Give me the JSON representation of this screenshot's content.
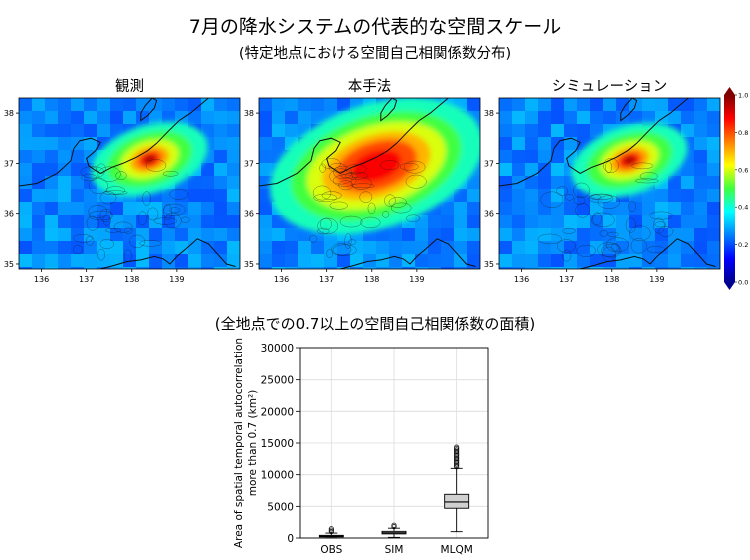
{
  "figure": {
    "title": "7月の降水システムの代表的な空間スケール",
    "subtitle": "(特定地点における空間自己相関係数分布)",
    "boxplot_title": "(全地点での0.7以上の空間自己相関係数の面積)"
  },
  "chart_data": [
    {
      "type": "heatmap",
      "panels": [
        "観測",
        "本手法",
        "シミュレーション"
      ],
      "x_ticks": [
        "136",
        "137",
        "138",
        "139"
      ],
      "y_ticks": [
        "38",
        "37",
        "36",
        "35"
      ],
      "xlim": [
        135.5,
        140.4
      ],
      "ylim": [
        34.9,
        38.3
      ],
      "colorbar": {
        "ticks": [
          "1.0",
          "0.8",
          "0.6",
          "0.4",
          "0.2",
          "0.0"
        ],
        "range": [
          0,
          1
        ],
        "colormap": "jet"
      },
      "hotspots": [
        {
          "lon": 138.45,
          "lat": 37.12,
          "peak": 1.0,
          "extent": "small"
        },
        {
          "lon": 138.3,
          "lat": 37.05,
          "peak": 1.0,
          "extent": "large"
        },
        {
          "lon": 138.45,
          "lat": 37.1,
          "peak": 1.0,
          "extent": "small"
        }
      ]
    },
    {
      "type": "box",
      "categories": [
        "OBS",
        "SIM",
        "MLQM"
      ],
      "ylabel_line1": "Area of spatial temporal autocorrelation",
      "ylabel_line2": "more than 0.7 (km²)",
      "ylim": [
        0,
        30000
      ],
      "yticks": [
        "0",
        "5000",
        "10000",
        "15000",
        "20000",
        "25000",
        "30000"
      ],
      "grid": true,
      "boxes": [
        {
          "name": "OBS",
          "whisker_low": 20,
          "q1": 180,
          "median": 280,
          "q3": 420,
          "whisker_high": 780,
          "flier_max": 1600
        },
        {
          "name": "SIM",
          "whisker_low": 100,
          "q1": 650,
          "median": 820,
          "q3": 1050,
          "whisker_high": 1550,
          "flier_max": 2100
        },
        {
          "name": "MLQM",
          "whisker_low": 1000,
          "q1": 4700,
          "median": 5700,
          "q3": 6900,
          "whisker_high": 11000,
          "flier_max": 14500
        }
      ]
    }
  ]
}
